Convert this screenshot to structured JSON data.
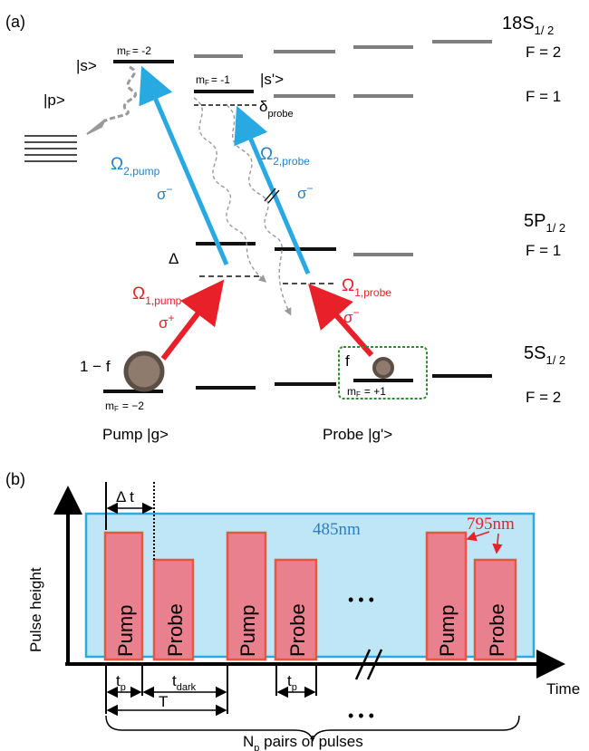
{
  "panel_a": {
    "label": "(a)",
    "states": {
      "s": "|s>",
      "s_prime": "|s'>",
      "p": "|p>",
      "g": "|g>",
      "g_prime": "|g'>"
    },
    "mf_labels": {
      "top_left": "m",
      "top_left_sub": "F",
      "top_left_val": "= -2",
      "top_mid": "m",
      "top_mid_sub": "F",
      "top_mid_val": "= -1",
      "bottom_left": "m",
      "bottom_left_sub": "F",
      "bottom_left_val": "= −2",
      "bottom_right": "m",
      "bottom_right_sub": "F",
      "bottom_right_val": "= +1"
    },
    "detunings": {
      "delta_probe": "δ",
      "delta_probe_sub": "probe",
      "Delta": "Δ"
    },
    "couplings": {
      "omega": "Ω",
      "omega2_pump_sub": "2,pump",
      "omega2_probe_sub": "2,probe",
      "omega1_pump_sub": "1,pump",
      "omega1_probe_sub": "1,probe",
      "sigma": "σ",
      "sigma_minus": "−",
      "sigma_plus": "+"
    },
    "populations": {
      "pump_fraction": "1 − f",
      "probe_fraction": "f"
    },
    "species_labels": {
      "pump": "Pump",
      "probe": "Probe"
    },
    "levels": {
      "rydberg": "18S",
      "rydberg_sub": "1/ 2",
      "rydberg_F2": "F  = 2",
      "rydberg_F1": "F  = 1",
      "intermediate": "5P",
      "intermediate_sub": "1/ 2",
      "intermediate_F1": "F  = 1",
      "ground": "5S",
      "ground_sub": "1/ 2",
      "ground_F2": "F  = 2"
    },
    "colors": {
      "blue_beam": "#29a9e1",
      "red_beam": "#e8202a",
      "blue_text": "#2b7fc0",
      "red_text": "#e8202a",
      "level_black": "#111111",
      "level_gray": "#7f7f7f",
      "atom_fill": "#8e7b6e",
      "green_box": "#2e8b2e"
    }
  },
  "panel_b": {
    "label": "(b)",
    "y_axis_label": "Pulse height",
    "x_axis_label": "Time",
    "blue_pulse_label": "485nm",
    "red_pulse_label": "795nm",
    "pulse_labels": [
      "Pump",
      "Probe",
      "Pump",
      "Probe",
      "Pump",
      "Probe"
    ],
    "ellipsis": "• • •",
    "ellipsis_bottom": "• • •",
    "delta_t": "Δ t",
    "t_p": "t",
    "t_p_sub": "p",
    "t_dark": "t",
    "t_dark_sub": "dark",
    "period": "T",
    "pairs_label": "N",
    "pairs_sub": "p",
    "pairs_rest": " pairs of pulses",
    "colors": {
      "blue_fill": "#bfe6f7",
      "blue_stroke": "#29aae1",
      "pulse_fill": "#e9808d",
      "pulse_stroke": "#e8563e",
      "red_text": "#e8202a",
      "blue_text": "#2b7fc0"
    }
  }
}
